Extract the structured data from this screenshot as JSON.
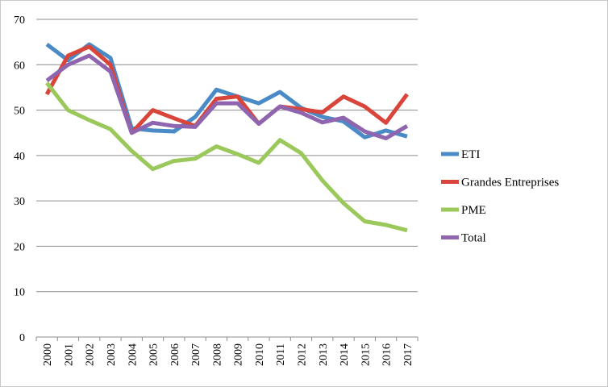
{
  "chart_data": {
    "type": "line",
    "title": "",
    "xlabel": "",
    "ylabel": "",
    "ylim": [
      0,
      70
    ],
    "yticks": [
      0,
      10,
      20,
      30,
      40,
      50,
      60,
      70
    ],
    "grid": true,
    "legend_position": "right",
    "categories": [
      "2000",
      "2001",
      "2002",
      "2003",
      "2004",
      "2005",
      "2006",
      "2007",
      "2008",
      "2009",
      "2010",
      "2011",
      "2012",
      "2013",
      "2014",
      "2015",
      "2016",
      "2017"
    ],
    "series": [
      {
        "name": "ETI",
        "color": "#4a8ac6",
        "values": [
          64.5,
          61,
          64.5,
          61.5,
          46,
          45.5,
          45.3,
          48.5,
          54.5,
          53,
          51.5,
          54,
          50.5,
          48.5,
          47.5,
          44,
          45.5,
          44.2
        ]
      },
      {
        "name": "Grandes Entreprises",
        "color": "#d9443b",
        "values": [
          53.5,
          62,
          64,
          60,
          45,
          50,
          48.2,
          46.5,
          52.5,
          53,
          47,
          50.8,
          50.2,
          49.5,
          53,
          50.8,
          47.2,
          53.5
        ]
      },
      {
        "name": "PME",
        "color": "#9ac85a",
        "values": [
          56,
          50,
          47.8,
          45.8,
          41,
          37,
          38.8,
          39.3,
          42,
          40.3,
          38.4,
          43.4,
          40.5,
          34.5,
          29.5,
          25.5,
          24.7,
          23.5
        ]
      },
      {
        "name": "Total",
        "color": "#8e65ae",
        "values": [
          56.5,
          60,
          62,
          58.5,
          45,
          47.2,
          46.5,
          46.3,
          51.5,
          51.5,
          47,
          50.8,
          49.4,
          47.3,
          48.3,
          45.3,
          43.8,
          46.5
        ]
      }
    ]
  }
}
